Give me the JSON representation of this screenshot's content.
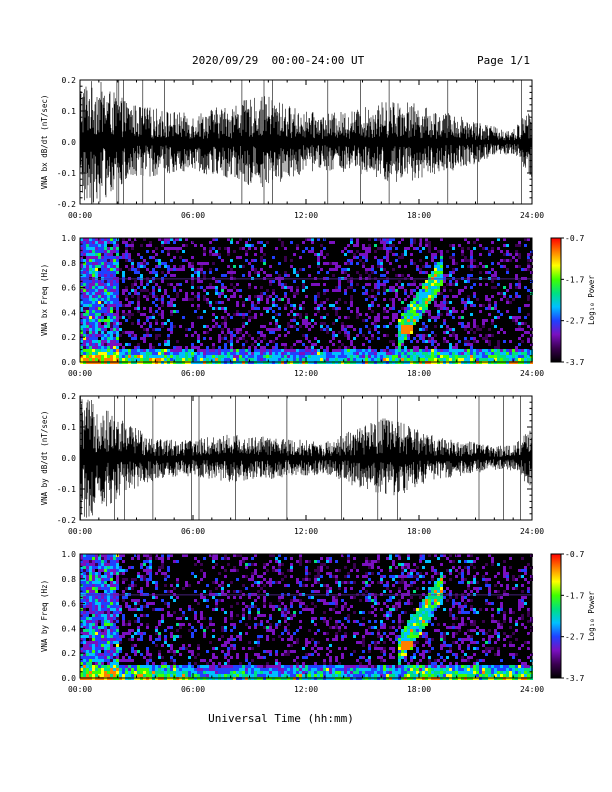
{
  "header": {
    "title": "2020/09/29  00:00-24:00 UT",
    "page": "Page 1/1"
  },
  "colorbar": {
    "label": "Log₁₀ Power",
    "ticks": [
      "-0.7",
      "-1.7",
      "-2.7",
      "-3.7"
    ],
    "colors": [
      "#000000",
      "#3a0050",
      "#7a10c0",
      "#2040ff",
      "#00c0ff",
      "#00e080",
      "#40ff00",
      "#ffff00",
      "#ff8000",
      "#ff0000"
    ]
  },
  "chart_data": [
    {
      "type": "line",
      "ylabel": "VNA bx dB/dt (nT/sec)",
      "ylim": [
        -0.2,
        0.2
      ],
      "yticks": [
        "0.2",
        "0.1",
        "0.0",
        "-0.1",
        "-0.2"
      ],
      "xticks": [
        "00:00",
        "06:00",
        "12:00",
        "18:00",
        "24:00"
      ],
      "xlim_hours": [
        0,
        24
      ],
      "series": [
        {
          "x_hours": [
            0,
            1,
            2,
            3,
            4,
            5,
            6,
            7,
            8,
            9,
            10,
            11,
            12,
            13,
            14,
            15,
            16,
            17,
            18,
            19,
            20,
            21,
            22,
            23,
            24
          ],
          "amplitude": [
            0.2,
            0.2,
            0.15,
            0.12,
            0.11,
            0.1,
            0.09,
            0.11,
            0.12,
            0.14,
            0.15,
            0.12,
            0.1,
            0.09,
            0.1,
            0.11,
            0.13,
            0.14,
            0.12,
            0.1,
            0.09,
            0.07,
            0.05,
            0.04,
            0.12
          ]
        }
      ]
    },
    {
      "type": "heatmap",
      "ylabel": "VNA bx Freq (Hz)",
      "ylim": [
        0.0,
        1.0
      ],
      "yticks": [
        "1.0",
        "0.8",
        "0.6",
        "0.4",
        "0.2",
        "0.0"
      ],
      "xticks": [
        "00:00",
        "06:00",
        "12:00",
        "18:00",
        "24:00"
      ],
      "zlim": [
        -3.7,
        -0.7
      ]
    },
    {
      "type": "line",
      "ylabel": "VNA by dB/dt (nT/sec)",
      "ylim": [
        -0.2,
        0.2
      ],
      "yticks": [
        "0.2",
        "0.1",
        "0.0",
        "-0.1",
        "-0.2"
      ],
      "xticks": [
        "00:00",
        "06:00",
        "12:00",
        "18:00",
        "24:00"
      ],
      "xlim_hours": [
        0,
        24
      ],
      "series": [
        {
          "x_hours": [
            0,
            1,
            2,
            3,
            4,
            5,
            6,
            7,
            8,
            9,
            10,
            11,
            12,
            13,
            14,
            15,
            16,
            17,
            18,
            19,
            20,
            21,
            22,
            23,
            24
          ],
          "amplitude": [
            0.2,
            0.18,
            0.13,
            0.1,
            0.07,
            0.06,
            0.06,
            0.07,
            0.08,
            0.07,
            0.07,
            0.06,
            0.06,
            0.05,
            0.08,
            0.1,
            0.13,
            0.12,
            0.09,
            0.07,
            0.06,
            0.05,
            0.04,
            0.04,
            0.1
          ]
        }
      ]
    },
    {
      "type": "heatmap",
      "ylabel": "VNA by Freq (Hz)",
      "ylim": [
        0.0,
        1.0
      ],
      "yticks": [
        "1.0",
        "0.8",
        "0.6",
        "0.4",
        "0.2",
        "0.0"
      ],
      "xticks": [
        "00:00",
        "06:00",
        "12:00",
        "18:00",
        "24:00"
      ],
      "zlim": [
        -3.7,
        -0.7
      ]
    }
  ],
  "xlabel": "Universal Time (hh:mm)"
}
